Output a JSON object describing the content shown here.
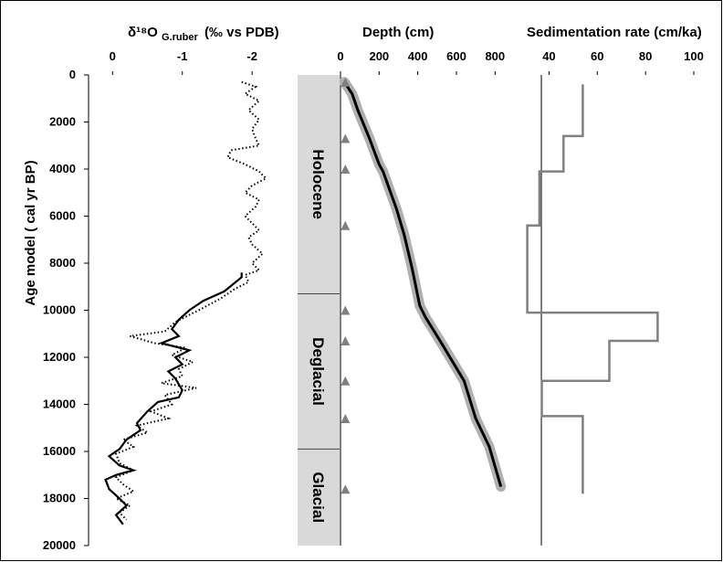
{
  "chart_data": {
    "type": "line",
    "ylabel": "Age model ( cal yr BP)",
    "y_axis": {
      "ticks": [
        0,
        2000,
        4000,
        6000,
        8000,
        10000,
        12000,
        14000,
        16000,
        18000,
        20000
      ],
      "ylim": [
        0,
        20000
      ]
    },
    "panels": [
      {
        "id": "d18o",
        "title_main": "δ¹⁸O",
        "title_sub": "G.ruber",
        "title_unit": "(‰ vs PDB)",
        "xlim": [
          0.2,
          -2.6
        ],
        "ticks": [
          0,
          -1,
          -2
        ],
        "tick_labels": [
          "0",
          "-1",
          "-2"
        ],
        "series": [
          {
            "style": "dotted",
            "points": [
              [
                -1.85,
                300
              ],
              [
                -2.05,
                500
              ],
              [
                -1.9,
                800
              ],
              [
                -2.1,
                1100
              ],
              [
                -1.95,
                1500
              ],
              [
                -2.1,
                1900
              ],
              [
                -2.0,
                2300
              ],
              [
                -2.05,
                2700
              ],
              [
                -2.1,
                3000
              ],
              [
                -1.7,
                3200
              ],
              [
                -1.65,
                3500
              ],
              [
                -1.9,
                3800
              ],
              [
                -2.1,
                4100
              ],
              [
                -2.2,
                4400
              ],
              [
                -2.0,
                4700
              ],
              [
                -1.9,
                5000
              ],
              [
                -2.1,
                5300
              ],
              [
                -2.05,
                5600
              ],
              [
                -1.9,
                6000
              ],
              [
                -2.0,
                6300
              ],
              [
                -2.1,
                6600
              ],
              [
                -1.95,
                6900
              ],
              [
                -2.0,
                7200
              ],
              [
                -2.15,
                7600
              ],
              [
                -2.0,
                8000
              ],
              [
                -2.1,
                8300
              ],
              [
                -1.9,
                8500
              ],
              [
                -1.95,
                8800
              ],
              [
                -1.75,
                9100
              ],
              [
                -1.55,
                9500
              ],
              [
                -1.3,
                9900
              ],
              [
                -1.1,
                10200
              ],
              [
                -0.9,
                10500
              ],
              [
                -0.75,
                10900
              ],
              [
                -0.25,
                11100
              ],
              [
                -0.6,
                11400
              ],
              [
                -1.05,
                11600
              ],
              [
                -0.85,
                11900
              ],
              [
                -1.15,
                12200
              ],
              [
                -0.95,
                12500
              ],
              [
                -1.0,
                12800
              ],
              [
                -0.7,
                13100
              ],
              [
                -1.2,
                13300
              ],
              [
                -0.75,
                13600
              ],
              [
                -0.85,
                14000
              ],
              [
                -0.55,
                14300
              ],
              [
                -0.8,
                14600
              ],
              [
                -0.35,
                14900
              ],
              [
                -0.5,
                15200
              ],
              [
                -0.15,
                15500
              ],
              [
                -0.3,
                15800
              ],
              [
                -0.05,
                16100
              ],
              [
                -0.1,
                16500
              ],
              [
                -0.3,
                16800
              ],
              [
                -0.05,
                17100
              ],
              [
                -0.15,
                17400
              ],
              [
                -0.3,
                17700
              ],
              [
                -0.05,
                18000
              ],
              [
                -0.25,
                18300
              ],
              [
                -0.1,
                18600
              ],
              [
                -0.2,
                18900
              ]
            ]
          },
          {
            "style": "solid",
            "points": [
              [
                -1.85,
                8400
              ],
              [
                -1.85,
                8600
              ],
              [
                -1.6,
                9200
              ],
              [
                -1.3,
                9600
              ],
              [
                -1.1,
                10000
              ],
              [
                -0.95,
                10400
              ],
              [
                -0.85,
                10800
              ],
              [
                -0.95,
                11100
              ],
              [
                -0.7,
                11400
              ],
              [
                -1.1,
                11700
              ],
              [
                -0.9,
                12000
              ],
              [
                -1.0,
                12300
              ],
              [
                -0.8,
                12600
              ],
              [
                -0.9,
                12900
              ],
              [
                -1.0,
                13400
              ],
              [
                -0.95,
                13700
              ],
              [
                -0.65,
                13900
              ],
              [
                -0.5,
                14300
              ],
              [
                -0.35,
                14800
              ],
              [
                -0.4,
                15100
              ],
              [
                -0.2,
                15500
              ],
              [
                -0.1,
                15900
              ],
              [
                0.05,
                16200
              ],
              [
                -0.1,
                16600
              ],
              [
                -0.3,
                16800
              ],
              [
                -0.05,
                17000
              ],
              [
                0.1,
                17200
              ],
              [
                0.05,
                17600
              ],
              [
                -0.1,
                18000
              ],
              [
                -0.2,
                18300
              ],
              [
                -0.05,
                18700
              ],
              [
                -0.15,
                19100
              ]
            ]
          }
        ]
      },
      {
        "id": "depth",
        "title": "Depth (cm)",
        "xlim": [
          0,
          860
        ],
        "ticks": [
          0,
          200,
          400,
          600,
          800
        ],
        "stages": [
          {
            "label": "Holocene",
            "from": 0,
            "to": 9300
          },
          {
            "label": "Deglacial",
            "from": 9300,
            "to": 15900
          },
          {
            "label": "Glacial",
            "from": 15900,
            "to": 20000
          }
        ],
        "age_control": [
          {
            "depth": 25,
            "age": 300
          },
          {
            "depth": 25,
            "age": 2700
          },
          {
            "depth": 25,
            "age": 4000
          },
          {
            "depth": 25,
            "age": 6400
          },
          {
            "depth": 25,
            "age": 10000
          },
          {
            "depth": 25,
            "age": 11300
          },
          {
            "depth": 25,
            "age": 13000
          },
          {
            "depth": 25,
            "age": 14600
          },
          {
            "depth": 25,
            "age": 17600
          }
        ],
        "age_depth": [
          [
            20,
            300
          ],
          [
            60,
            800
          ],
          [
            90,
            1500
          ],
          [
            150,
            2700
          ],
          [
            200,
            3800
          ],
          [
            220,
            4100
          ],
          [
            290,
            5700
          ],
          [
            330,
            6800
          ],
          [
            370,
            8200
          ],
          [
            410,
            9800
          ],
          [
            440,
            10300
          ],
          [
            530,
            11500
          ],
          [
            640,
            13000
          ],
          [
            700,
            14600
          ],
          [
            770,
            15800
          ],
          [
            830,
            17500
          ]
        ]
      },
      {
        "id": "sedrate",
        "title": "Sedimentation rate (cm/ka)",
        "xlim": [
          30,
          100
        ],
        "ticks": [
          40,
          60,
          80,
          100
        ],
        "steps": [
          [
            54,
            400
          ],
          [
            54,
            2600
          ],
          [
            46,
            2600
          ],
          [
            46,
            4100
          ],
          [
            36,
            4100
          ],
          [
            36,
            6400
          ],
          [
            31,
            6400
          ],
          [
            31,
            10100
          ],
          [
            85,
            10100
          ],
          [
            85,
            11300
          ],
          [
            65,
            11300
          ],
          [
            65,
            13000
          ],
          [
            37,
            13000
          ],
          [
            37,
            14500
          ],
          [
            54,
            14500
          ],
          [
            54,
            17800
          ]
        ]
      }
    ]
  }
}
